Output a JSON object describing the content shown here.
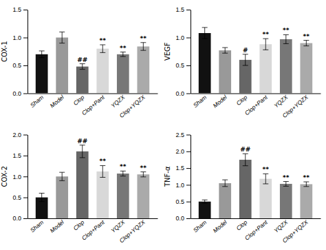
{
  "chart_data": [
    {
      "type": "bar",
      "ylabel": "COX-1",
      "categories": [
        "Sham",
        "Model",
        "Clop",
        "Clop+Pant",
        "YQZX",
        "Clop+YQZX"
      ],
      "values": [
        0.7,
        1.0,
        0.48,
        0.8,
        0.7,
        0.84
      ],
      "errors": [
        0.06,
        0.1,
        0.05,
        0.07,
        0.04,
        0.07
      ],
      "annotations": [
        null,
        null,
        "##",
        "**",
        "**",
        "**"
      ],
      "colors": [
        "#111111",
        "#999999",
        "#666666",
        "#d8d8d8",
        "#777777",
        "#aaaaaa"
      ],
      "ylim": [
        0,
        1.5
      ],
      "yticks": [
        {
          "value": 0,
          "label": "0.0"
        },
        0.5,
        {
          "value": 1,
          "label": "1.0"
        },
        1.5
      ]
    },
    {
      "type": "bar",
      "ylabel": "VEGF",
      "categories": [
        "Sham",
        "Model",
        "Clop",
        "Clop+Pant",
        "YQZX",
        "Clop+YQZX"
      ],
      "values": [
        1.08,
        0.77,
        0.6,
        0.88,
        0.97,
        0.9
      ],
      "errors": [
        0.1,
        0.05,
        0.1,
        0.1,
        0.08,
        0.05
      ],
      "annotations": [
        null,
        null,
        "#",
        "**",
        "**",
        "**"
      ],
      "colors": [
        "#111111",
        "#999999",
        "#666666",
        "#d8d8d8",
        "#777777",
        "#aaaaaa"
      ],
      "ylim": [
        0,
        1.5
      ],
      "yticks": [
        {
          "value": 0,
          "label": "0.0"
        },
        0.5,
        {
          "value": 1,
          "label": "1.0"
        },
        1.5
      ]
    },
    {
      "type": "bar",
      "ylabel": "COX-2",
      "categories": [
        "Sham",
        "Model",
        "Clop",
        "Clop+Pant",
        "YQZX",
        "Clop+YQZX"
      ],
      "values": [
        0.5,
        1.0,
        1.6,
        1.12,
        1.07,
        1.05
      ],
      "errors": [
        0.1,
        0.1,
        0.15,
        0.14,
        0.06,
        0.06
      ],
      "annotations": [
        null,
        null,
        "##",
        "**",
        "**",
        "**"
      ],
      "colors": [
        "#111111",
        "#999999",
        "#666666",
        "#d8d8d8",
        "#777777",
        "#aaaaaa"
      ],
      "ylim": [
        0,
        2.0
      ],
      "yticks": [
        {
          "value": 0,
          "label": "0.0"
        },
        0.5,
        {
          "value": 1,
          "label": "1.0"
        },
        1.5,
        {
          "value": 2,
          "label": "2.0"
        }
      ]
    },
    {
      "type": "bar",
      "ylabel": "TNF-α",
      "categories": [
        "Sham",
        "Model",
        "Clop",
        "Clop+Pant",
        "YQZX",
        "Clop+YQZX"
      ],
      "values": [
        0.5,
        1.05,
        1.75,
        1.18,
        1.03,
        1.02
      ],
      "errors": [
        0.05,
        0.1,
        0.18,
        0.15,
        0.07,
        0.07
      ],
      "annotations": [
        null,
        null,
        "##",
        "**",
        "**",
        "**"
      ],
      "colors": [
        "#111111",
        "#999999",
        "#666666",
        "#d8d8d8",
        "#777777",
        "#aaaaaa"
      ],
      "ylim": [
        0,
        2.5
      ],
      "yticks": [
        {
          "value": 0,
          "label": "0.0"
        },
        0.5,
        {
          "value": 1,
          "label": "1.0"
        },
        1.5,
        {
          "value": 2,
          "label": "2.0"
        },
        2.5
      ]
    }
  ]
}
